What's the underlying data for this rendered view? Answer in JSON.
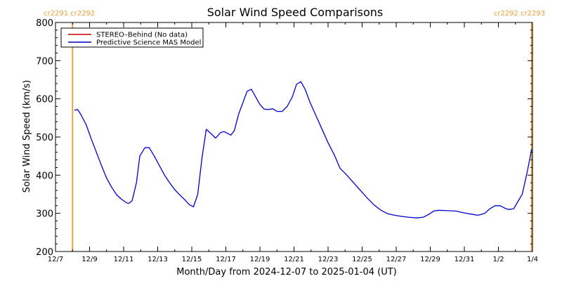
{
  "chart_data": {
    "type": "line",
    "title": "Solar Wind Speed Comparisons",
    "xlabel": "Month/Day from 2024-12-07 to 2025-01-04 (UT)",
    "ylabel": "Solar Wind Speed (km/s)",
    "x_unit": "days since 2024-12-07 00:00 UT",
    "xlim": [
      0,
      28
    ],
    "ylim": [
      200,
      800
    ],
    "y_ticks": [
      200,
      300,
      400,
      500,
      600,
      700,
      800
    ],
    "x_ticks": [
      {
        "day": 0,
        "label": "12/7"
      },
      {
        "day": 2,
        "label": "12/9"
      },
      {
        "day": 4,
        "label": "12/11"
      },
      {
        "day": 6,
        "label": "12/13"
      },
      {
        "day": 8,
        "label": "12/15"
      },
      {
        "day": 10,
        "label": "12/17"
      },
      {
        "day": 12,
        "label": "12/19"
      },
      {
        "day": 14,
        "label": "12/21"
      },
      {
        "day": 16,
        "label": "12/23"
      },
      {
        "day": 18,
        "label": "12/25"
      },
      {
        "day": 20,
        "label": "12/27"
      },
      {
        "day": 22,
        "label": "12/29"
      },
      {
        "day": 24,
        "label": "12/31"
      },
      {
        "day": 26,
        "label": "1/2"
      },
      {
        "day": 28,
        "label": "1/4"
      }
    ],
    "grid": false,
    "legend_position": "top-left",
    "series": [
      {
        "name": "STEREO–Behind (No data)",
        "color": "#cc0000",
        "x": [],
        "y": []
      },
      {
        "name": "Predictive Science MAS Model",
        "color": "#0000cc",
        "x": [
          1.1,
          1.3,
          1.5,
          1.8,
          2.1,
          2.4,
          2.7,
          3.0,
          3.3,
          3.6,
          3.9,
          4.2,
          4.3,
          4.5,
          4.75,
          4.95,
          5.25,
          5.5,
          5.8,
          6.1,
          6.4,
          6.7,
          7.0,
          7.3,
          7.6,
          7.85,
          8.1,
          8.35,
          8.6,
          8.85,
          9.1,
          9.4,
          9.7,
          9.9,
          10.3,
          10.5,
          10.75,
          11.0,
          11.25,
          11.5,
          11.75,
          12.0,
          12.25,
          12.5,
          12.75,
          13.0,
          13.3,
          13.6,
          13.9,
          14.15,
          14.4,
          14.65,
          14.95,
          15.3,
          15.7,
          16.0,
          16.4,
          16.7,
          17.1,
          17.5,
          17.9,
          18.3,
          18.7,
          19.1,
          19.5,
          19.9,
          20.3,
          20.7,
          21.2,
          21.6,
          21.9,
          22.2,
          22.5,
          23.0,
          23.5,
          24.0,
          24.4,
          24.8,
          25.2,
          25.5,
          25.8,
          26.1,
          26.4,
          26.6,
          26.9,
          27.1,
          27.4,
          27.7,
          27.95
        ],
        "y": [
          570,
          572,
          558,
          532,
          495,
          460,
          425,
          392,
          368,
          348,
          336,
          327,
          326,
          333,
          380,
          450,
          472,
          472,
          450,
          425,
          400,
          380,
          362,
          348,
          335,
          323,
          317,
          350,
          445,
          520,
          510,
          497,
          512,
          514,
          505,
          517,
          560,
          590,
          620,
          625,
          605,
          585,
          573,
          572,
          574,
          567,
          567,
          580,
          605,
          638,
          645,
          625,
          590,
          555,
          515,
          485,
          450,
          418,
          400,
          380,
          360,
          340,
          322,
          308,
          299,
          295,
          292,
          290,
          288,
          290,
          297,
          306,
          308,
          307,
          306,
          301,
          298,
          295,
          300,
          312,
          320,
          320,
          313,
          310,
          312,
          328,
          350,
          410,
          468
        ]
      }
    ],
    "carrington_markers": [
      {
        "day": 1.0,
        "label": "cr2291 cr2292",
        "color": "#e8a33d",
        "label_side": "left"
      },
      {
        "day": 27.95,
        "label": "cr2292 cr2293",
        "color": "#e8a33d",
        "label_side": "right"
      }
    ]
  }
}
